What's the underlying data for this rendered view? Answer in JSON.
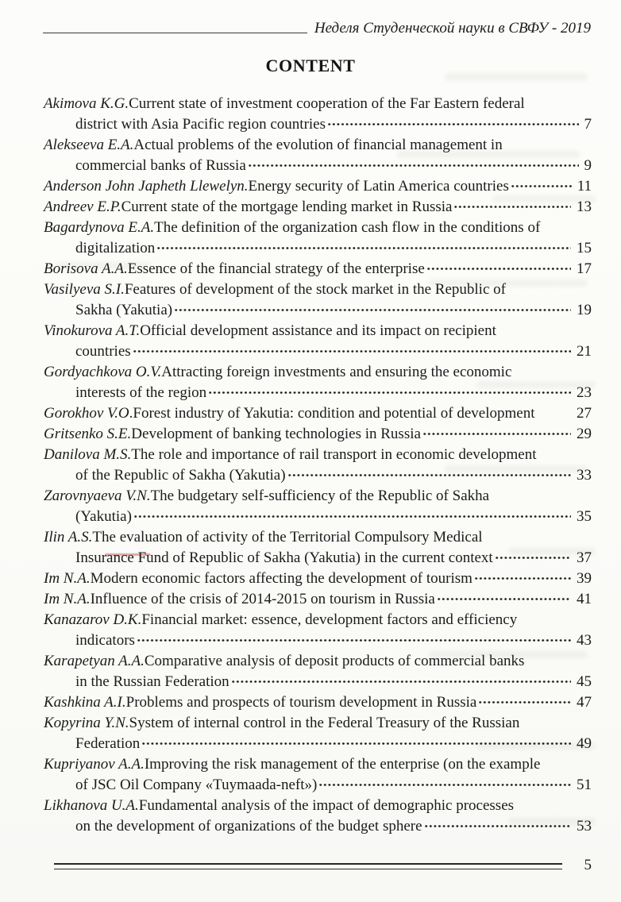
{
  "header": {
    "running_title": "Неделя Студенческой науки в СВФУ - 2019"
  },
  "title": "CONTENT",
  "footer": {
    "page_number": "5"
  },
  "toc": {
    "entries": [
      {
        "author": "Akimova K.G.",
        "title_line1": "Current state of investment cooperation of the Far Eastern federal",
        "title_line2": "district with Asia Pacific region countries",
        "page": "7",
        "dots": true
      },
      {
        "author": "Alekseeva E.A.",
        "title_line1": "Actual problems of the evolution of financial management in",
        "title_line2": "commercial banks of Russia",
        "page": "9",
        "dots": true
      },
      {
        "author": "Anderson John Japheth Llewelyn.",
        "title_line1": "Energy security of Latin America countries",
        "title_line2": null,
        "page": "11",
        "dots": true
      },
      {
        "author": "Andreev E.P.",
        "title_line1": "Current state of the mortgage lending market in Russia",
        "title_line2": null,
        "page": "13",
        "dots": true
      },
      {
        "author": "Bagardynova E.A.",
        "title_line1": "The definition of the organization cash flow in the conditions of",
        "title_line2": "digitalization",
        "page": "15",
        "dots": true
      },
      {
        "author": "Borisova A.A.",
        "title_line1": "Essence of the financial strategy of the enterprise",
        "title_line2": null,
        "page": "17",
        "dots": true
      },
      {
        "author": "Vasilyeva S.I.",
        "title_line1": "Features of development of the stock market in the Republic of",
        "title_line2": "Sakha (Yakutia)",
        "page": "19",
        "dots": true
      },
      {
        "author": "Vinokurova A.T.",
        "title_line1": "Official development assistance and its impact on recipient",
        "title_line2": "countries",
        "page": "21",
        "dots": true
      },
      {
        "author": "Gordyachkova O.V.",
        "title_line1": "Attracting foreign investments and ensuring the economic",
        "title_line2": "interests of the region",
        "page": "23",
        "dots": true
      },
      {
        "author": "Gorokhov V.O",
        "title_line1": ".Forest industry of Yakutia: condition and potential of development",
        "title_line2": null,
        "page": "27",
        "dots": false
      },
      {
        "author": "Gritsenko S.E.",
        "title_line1": "Development of banking technologies in Russia",
        "title_line2": null,
        "page": "29",
        "dots": true
      },
      {
        "author": "Danilova M.S.",
        "title_line1": "The role and importance of rail transport in economic development",
        "title_line2": "of the Republic of Sakha (Yakutia)",
        "page": "33",
        "dots": true
      },
      {
        "author": "Zarovnyaeva V.N.",
        "title_line1": "The budgetary self-sufficiency of the Republic of Sakha",
        "title_line2": "(Yakutia)",
        "page": "35",
        "dots": true
      },
      {
        "author": "Ilin A.S.",
        "title_line1": "The evaluation of activity of the Territorial Compulsory Medical",
        "title_line2": "Insurance Fund of Republic of Sakha (Yakutia) in the current context",
        "page": "37",
        "dots": true
      },
      {
        "author": "Im N.A.",
        "title_line1": "Modern economic factors affecting the development of tourism",
        "title_line2": null,
        "page": "39",
        "dots": true
      },
      {
        "author": "Im N.A.",
        "title_line1": "Influence of the crisis of 2014-2015 on tourism in Russia",
        "title_line2": null,
        "page": "41",
        "dots": true
      },
      {
        "author": "Kanazarov D.K.",
        "title_line1": "Financial market: essence, development factors and efficiency",
        "title_line2": "indicators",
        "page": "43",
        "dots": true
      },
      {
        "author": "Karapetyan A.A.",
        "title_line1": "Comparative analysis of deposit products of commercial banks",
        "title_line2": "in the Russian Federation",
        "page": "45",
        "dots": true
      },
      {
        "author": "Kashkina A.I.",
        "title_line1": "Problems and prospects of tourism development in Russia",
        "title_line2": null,
        "page": "47",
        "dots": true
      },
      {
        "author": "Kopyrina Y.N.",
        "title_line1": "System of internal control in the Federal Treasury of the Russian",
        "title_line2": "Federation",
        "page": "49",
        "dots": true
      },
      {
        "author": "Kupriyanov A.A.",
        "title_line1": "Improving the risk management of the enterprise (on the example",
        "title_line2": "of JSC Oil Company «Tuymaada-neft»)",
        "page": "51",
        "dots": true
      },
      {
        "author": "Likhanova U.A.",
        "title_line1": "Fundamental analysis of the impact of demographic processes",
        "title_line2": "on the development of organizations of the budget sphere",
        "page": "53",
        "dots": true
      }
    ]
  }
}
